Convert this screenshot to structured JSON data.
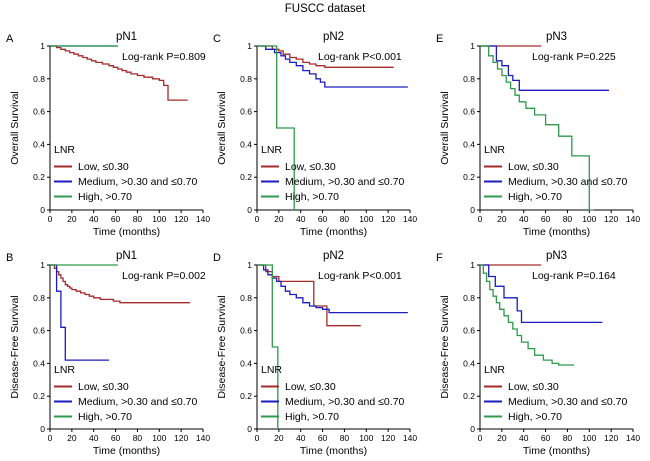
{
  "figure_title": "FUSCC dataset",
  "colors": {
    "low": "#a52a2a",
    "medium": "#1c1cbf",
    "high": "#2e9a4c",
    "axis": "#000000"
  },
  "legend": {
    "title": "LNR",
    "entries": [
      {
        "key": "low",
        "label": "Low, ≤0.30"
      },
      {
        "key": "medium",
        "label": "Medium, >0.30 and ≤0.70"
      },
      {
        "key": "high",
        "label": "High, >0.70"
      }
    ]
  },
  "chart_data": [
    {
      "panel_letter": "A",
      "title": "pN1",
      "type": "line",
      "annotation": "Log-rank P=0.809",
      "xlabel": "Time (months)",
      "ylabel": "Overall Survival",
      "xlim": [
        0,
        140
      ],
      "ylim": [
        0,
        1.0
      ],
      "xticks": [
        0,
        20,
        40,
        60,
        80,
        100,
        120,
        140
      ],
      "yticks": [
        0,
        0.2,
        0.4,
        0.6,
        0.8,
        1.0
      ],
      "series": [
        {
          "name": "Low, ≤0.30",
          "key": "low",
          "x": [
            0,
            6,
            10,
            14,
            18,
            22,
            26,
            30,
            34,
            38,
            42,
            48,
            54,
            58,
            62,
            66,
            70,
            74,
            80,
            86,
            94,
            100,
            104,
            108,
            112,
            126
          ],
          "y": [
            1.0,
            0.99,
            0.98,
            0.97,
            0.96,
            0.95,
            0.94,
            0.93,
            0.92,
            0.91,
            0.9,
            0.89,
            0.88,
            0.87,
            0.86,
            0.85,
            0.84,
            0.83,
            0.82,
            0.81,
            0.8,
            0.79,
            0.76,
            0.67,
            0.67,
            0.67
          ]
        },
        {
          "name": "Medium, >0.30 and ≤0.70",
          "key": "medium",
          "x": [
            0,
            62
          ],
          "y": [
            1.0,
            1.0
          ]
        },
        {
          "name": "High, >0.70",
          "key": "high",
          "x": [
            0,
            62
          ],
          "y": [
            1.0,
            1.0
          ]
        }
      ]
    },
    {
      "panel_letter": "C",
      "title": "pN2",
      "type": "line",
      "annotation": "Log-rank P<0.001",
      "xlabel": "Time (months)",
      "ylabel": "Overall Survival",
      "xlim": [
        0,
        140
      ],
      "ylim": [
        0,
        1.0
      ],
      "xticks": [
        0,
        20,
        40,
        60,
        80,
        100,
        120,
        140
      ],
      "yticks": [
        0,
        0.2,
        0.4,
        0.6,
        0.8,
        1.0
      ],
      "series": [
        {
          "name": "Low, ≤0.30",
          "key": "low",
          "x": [
            0,
            14,
            20,
            24,
            30,
            36,
            42,
            48,
            54,
            62,
            125
          ],
          "y": [
            1.0,
            0.98,
            0.97,
            0.95,
            0.93,
            0.92,
            0.9,
            0.89,
            0.88,
            0.87,
            0.87
          ]
        },
        {
          "name": "Medium, >0.30 and ≤0.70",
          "key": "medium",
          "x": [
            0,
            8,
            16,
            22,
            26,
            30,
            36,
            42,
            48,
            54,
            58,
            62,
            138
          ],
          "y": [
            1.0,
            0.98,
            0.96,
            0.94,
            0.92,
            0.9,
            0.88,
            0.85,
            0.83,
            0.8,
            0.78,
            0.75,
            0.75
          ]
        },
        {
          "name": "High, >0.70",
          "key": "high",
          "x": [
            0,
            8,
            18,
            34
          ],
          "y": [
            1.0,
            1.0,
            0.5,
            0.0
          ]
        }
      ]
    },
    {
      "panel_letter": "E",
      "title": "pN3",
      "type": "line",
      "annotation": "Log-rank P=0.225",
      "xlabel": "Time (months)",
      "ylabel": "Overall Survival",
      "xlim": [
        0,
        140
      ],
      "ylim": [
        0,
        1.0
      ],
      "xticks": [
        0,
        20,
        40,
        60,
        80,
        100,
        120,
        140
      ],
      "yticks": [
        0,
        0.2,
        0.4,
        0.6,
        0.8,
        1.0
      ],
      "series": [
        {
          "name": "Low, ≤0.30",
          "key": "low",
          "x": [
            0,
            56
          ],
          "y": [
            1.0,
            1.0
          ]
        },
        {
          "name": "Medium, >0.30 and ≤0.70",
          "key": "medium",
          "x": [
            0,
            15,
            20,
            26,
            30,
            36,
            118
          ],
          "y": [
            1.0,
            0.91,
            0.88,
            0.82,
            0.79,
            0.73,
            0.73
          ]
        },
        {
          "name": "High, >0.70",
          "key": "high",
          "x": [
            0,
            8,
            12,
            16,
            20,
            24,
            28,
            32,
            36,
            42,
            50,
            60,
            72,
            84,
            100,
            104
          ],
          "y": [
            1.0,
            0.94,
            0.9,
            0.86,
            0.82,
            0.78,
            0.74,
            0.7,
            0.66,
            0.62,
            0.58,
            0.52,
            0.45,
            0.33,
            0.0,
            0.0
          ]
        }
      ]
    },
    {
      "panel_letter": "B",
      "title": "pN1",
      "type": "line",
      "annotation": "Log-rank P=0.002",
      "xlabel": "Time (months)",
      "ylabel": "Disease-Free Survival",
      "xlim": [
        0,
        140
      ],
      "ylim": [
        0,
        1.0
      ],
      "xticks": [
        0,
        20,
        40,
        60,
        80,
        100,
        120,
        140
      ],
      "yticks": [
        0,
        0.2,
        0.4,
        0.6,
        0.8,
        1.0
      ],
      "series": [
        {
          "name": "Low, ≤0.30",
          "key": "low",
          "x": [
            0,
            4,
            6,
            8,
            10,
            12,
            14,
            16,
            18,
            20,
            24,
            28,
            32,
            36,
            40,
            46,
            52,
            58,
            64,
            70,
            128
          ],
          "y": [
            1.0,
            0.98,
            0.96,
            0.94,
            0.92,
            0.9,
            0.88,
            0.87,
            0.86,
            0.85,
            0.84,
            0.83,
            0.82,
            0.81,
            0.8,
            0.79,
            0.79,
            0.78,
            0.77,
            0.77,
            0.77
          ]
        },
        {
          "name": "Medium, >0.30 and ≤0.70",
          "key": "medium",
          "x": [
            0,
            6,
            10,
            14,
            18,
            54
          ],
          "y": [
            1.0,
            0.84,
            0.62,
            0.42,
            0.42,
            0.42
          ]
        },
        {
          "name": "High, >0.70",
          "key": "high",
          "x": [
            0,
            62
          ],
          "y": [
            1.0,
            1.0
          ]
        }
      ]
    },
    {
      "panel_letter": "D",
      "title": "pN2",
      "type": "line",
      "annotation": "Log-rank P<0.001",
      "xlabel": "Time (months)",
      "ylabel": "Disease-Free Survival",
      "xlim": [
        0,
        140
      ],
      "ylim": [
        0,
        1.0
      ],
      "xticks": [
        0,
        20,
        40,
        60,
        80,
        100,
        120,
        140
      ],
      "yticks": [
        0,
        0.2,
        0.4,
        0.6,
        0.8,
        1.0
      ],
      "series": [
        {
          "name": "Low, ≤0.30",
          "key": "low",
          "x": [
            0,
            8,
            14,
            20,
            48,
            52,
            62,
            64,
            95
          ],
          "y": [
            1.0,
            0.96,
            0.93,
            0.9,
            0.9,
            0.75,
            0.75,
            0.63,
            0.63
          ]
        },
        {
          "name": "Medium, >0.30 and ≤0.70",
          "key": "medium",
          "x": [
            0,
            6,
            10,
            14,
            18,
            22,
            26,
            30,
            36,
            42,
            48,
            54,
            60,
            66,
            138
          ],
          "y": [
            1.0,
            0.97,
            0.94,
            0.92,
            0.9,
            0.87,
            0.84,
            0.82,
            0.8,
            0.77,
            0.75,
            0.74,
            0.73,
            0.71,
            0.71
          ]
        },
        {
          "name": "High, >0.70",
          "key": "high",
          "x": [
            0,
            8,
            14,
            19
          ],
          "y": [
            1.0,
            1.0,
            0.5,
            0.0
          ]
        }
      ]
    },
    {
      "panel_letter": "F",
      "title": "pN3",
      "type": "line",
      "annotation": "Log-rank P=0.164",
      "xlabel": "Time (months)",
      "ylabel": "Disease-Free Survival",
      "xlim": [
        0,
        140
      ],
      "ylim": [
        0,
        1.0
      ],
      "xticks": [
        0,
        20,
        40,
        60,
        80,
        100,
        120,
        140
      ],
      "yticks": [
        0,
        0.2,
        0.4,
        0.6,
        0.8,
        1.0
      ],
      "series": [
        {
          "name": "Low, ≤0.30",
          "key": "low",
          "x": [
            0,
            56
          ],
          "y": [
            1.0,
            1.0
          ]
        },
        {
          "name": "Medium, >0.30 and ≤0.70",
          "key": "medium",
          "x": [
            0,
            8,
            14,
            22,
            28,
            34,
            38,
            112
          ],
          "y": [
            1.0,
            0.93,
            0.87,
            0.8,
            0.8,
            0.72,
            0.65,
            0.65
          ]
        },
        {
          "name": "High, >0.70",
          "key": "high",
          "x": [
            0,
            3,
            6,
            9,
            12,
            15,
            18,
            22,
            26,
            30,
            34,
            38,
            44,
            50,
            58,
            66,
            72,
            86
          ],
          "y": [
            1.0,
            0.95,
            0.9,
            0.85,
            0.81,
            0.77,
            0.73,
            0.69,
            0.65,
            0.61,
            0.57,
            0.53,
            0.49,
            0.45,
            0.42,
            0.4,
            0.39,
            0.39
          ]
        }
      ]
    }
  ]
}
